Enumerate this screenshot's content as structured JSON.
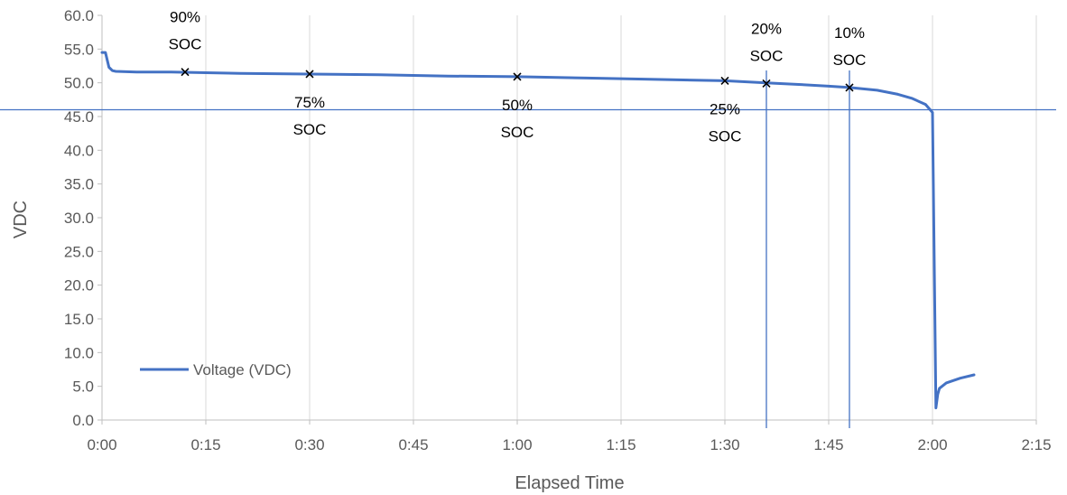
{
  "chart_data": {
    "type": "line",
    "title": "",
    "xlabel": "Elapsed Time",
    "ylabel": "VDC",
    "xlim": [
      "0:00",
      "2:15"
    ],
    "ylim": [
      0,
      60
    ],
    "x_ticks": [
      "0:00",
      "0:15",
      "0:30",
      "0:45",
      "1:00",
      "1:15",
      "1:30",
      "1:45",
      "2:00",
      "2:15"
    ],
    "y_ticks": [
      "0.0",
      "5.0",
      "10.0",
      "15.0",
      "20.0",
      "25.0",
      "30.0",
      "35.0",
      "40.0",
      "45.0",
      "50.0",
      "55.0",
      "60.0"
    ],
    "grid": "vertical",
    "legend_position": "bottom-left",
    "series": [
      {
        "name": "Voltage (VDC)",
        "color": "#4472C4",
        "x": [
          "0:00",
          "0:00:30",
          "0:01",
          "0:01:30",
          "0:02",
          "0:05",
          "0:10",
          "0:15",
          "0:20",
          "0:30",
          "0:40",
          "0:50",
          "1:00",
          "1:10",
          "1:20",
          "1:30",
          "1:36",
          "1:40",
          "1:45",
          "1:48",
          "1:52",
          "1:55",
          "1:57",
          "1:59",
          "2:00",
          "2:00:30",
          "2:00:45",
          "2:01",
          "2:02",
          "2:04",
          "2:06"
        ],
        "values": [
          54.5,
          54.5,
          52.3,
          51.8,
          51.7,
          51.6,
          51.6,
          51.5,
          51.4,
          51.3,
          51.2,
          51.0,
          50.9,
          50.7,
          50.5,
          50.3,
          50.0,
          49.8,
          49.5,
          49.3,
          48.9,
          48.3,
          47.7,
          46.8,
          45.6,
          1.8,
          3.8,
          4.7,
          5.5,
          6.2,
          6.7
        ]
      }
    ],
    "reference_lines": {
      "horizontal_y": 46.0,
      "vertical_x": [
        "1:36",
        "1:48"
      ]
    },
    "annotations": [
      {
        "x": "0:12",
        "y": 51.6,
        "marker": "x",
        "line1": "90%",
        "line2": "SOC",
        "placement": "above"
      },
      {
        "x": "0:30",
        "y": 51.3,
        "marker": "x",
        "line1": "75%",
        "line2": "SOC",
        "placement": "below"
      },
      {
        "x": "1:00",
        "y": 50.9,
        "marker": "x",
        "line1": "50%",
        "line2": "SOC",
        "placement": "below"
      },
      {
        "x": "1:30",
        "y": 50.3,
        "marker": "x",
        "line1": "25%",
        "line2": "SOC",
        "placement": "below"
      },
      {
        "x": "1:36",
        "y": 49.9,
        "marker": "x",
        "line1": "20%",
        "line2": "SOC",
        "placement": "above"
      },
      {
        "x": "1:48",
        "y": 49.3,
        "marker": "x",
        "line1": "10%",
        "line2": "SOC",
        "placement": "above"
      }
    ]
  }
}
